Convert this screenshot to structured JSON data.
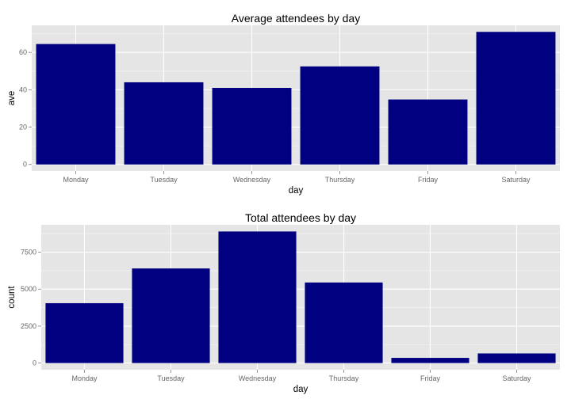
{
  "style": {
    "bar_color": "#000080",
    "panel_background": "#E5E5E5",
    "grid_color": "#FFFFFF",
    "tick_label_color": "#666666"
  },
  "chart_data": [
    {
      "type": "bar",
      "title": "Average attendees by day",
      "xlabel": "day",
      "ylabel": "ave",
      "categories": [
        "Monday",
        "Tuesday",
        "Wednesday",
        "Thursday",
        "Friday",
        "Saturday"
      ],
      "values": [
        64.5,
        44,
        41,
        52.5,
        34.8,
        71
      ],
      "ylim": [
        -3.5,
        74.5
      ],
      "yticks": [
        0,
        20,
        40,
        60
      ],
      "ytick_labels": [
        "0",
        "20",
        "40",
        "60"
      ],
      "grid": true
    },
    {
      "type": "bar",
      "title": "Total attendees by day",
      "xlabel": "day",
      "ylabel": "count",
      "categories": [
        "Monday",
        "Tuesday",
        "Wednesday",
        "Thursday",
        "Friday",
        "Saturday"
      ],
      "values": [
        4050,
        6400,
        8900,
        5450,
        350,
        650
      ],
      "ylim": [
        -450,
        9350
      ],
      "yticks": [
        0,
        2500,
        5000,
        7500
      ],
      "ytick_labels": [
        "0",
        "2500",
        "5000",
        "7500"
      ],
      "grid": true
    }
  ]
}
